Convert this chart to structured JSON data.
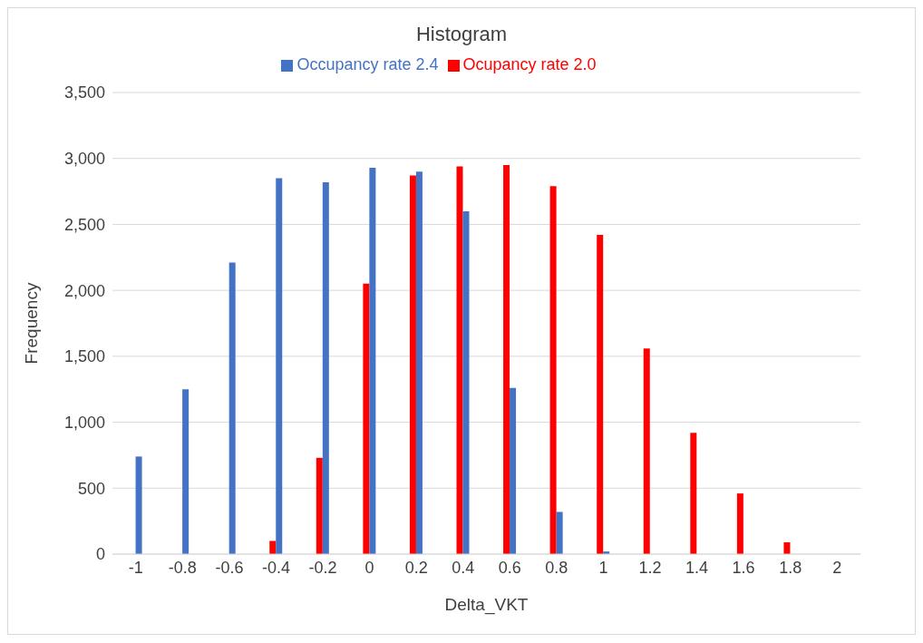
{
  "chart_data": {
    "type": "bar",
    "title": "Histogram",
    "xlabel": "Delta_VKT",
    "ylabel": "Frequency",
    "categories": [
      "-1",
      "-0.8",
      "-0.6",
      "-0.4",
      "-0.2",
      "0",
      "0.2",
      "0.4",
      "0.6",
      "0.8",
      "1",
      "1.2",
      "1.4",
      "1.6",
      "1.8",
      "2"
    ],
    "series": [
      {
        "name": "Ocupancy rate 2.0",
        "color": "#ff0000",
        "values": [
          0,
          0,
          0,
          100,
          730,
          2050,
          2870,
          2940,
          2950,
          2790,
          2420,
          1560,
          920,
          460,
          90,
          0
        ]
      },
      {
        "name": "Occupancy rate 2.4",
        "color": "#4472c4",
        "values": [
          740,
          1250,
          2210,
          2850,
          2820,
          2930,
          2900,
          2600,
          1260,
          320,
          20,
          0,
          0,
          0,
          0,
          0
        ]
      }
    ],
    "ylim": [
      0,
      3500
    ],
    "yticks": [
      {
        "value": 0,
        "label": "0"
      },
      {
        "value": 500,
        "label": "500"
      },
      {
        "value": 1000,
        "label": "1,000"
      },
      {
        "value": 1500,
        "label": "1,500"
      },
      {
        "value": 2000,
        "label": "2,000"
      },
      {
        "value": 2500,
        "label": "2,500"
      },
      {
        "value": 3000,
        "label": "3,000"
      },
      {
        "value": 3500,
        "label": "3,500"
      }
    ],
    "grid": "y",
    "legend": "top"
  }
}
